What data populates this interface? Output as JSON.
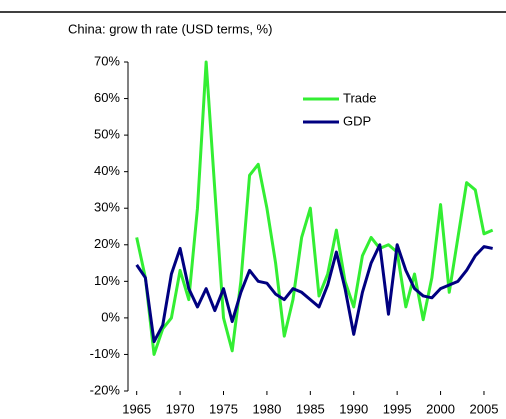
{
  "chart_data": {
    "type": "line",
    "title": "China: grow th rate (USD terms, %)",
    "x": [
      1965,
      1966,
      1967,
      1968,
      1969,
      1970,
      1971,
      1972,
      1973,
      1974,
      1975,
      1976,
      1977,
      1978,
      1979,
      1980,
      1981,
      1982,
      1983,
      1984,
      1985,
      1986,
      1987,
      1988,
      1989,
      1990,
      1991,
      1992,
      1993,
      1994,
      1995,
      1996,
      1997,
      1998,
      1999,
      2000,
      2001,
      2002,
      2003,
      2004,
      2005,
      2006
    ],
    "series": [
      {
        "name": "Trade",
        "color": "#33ee33",
        "values": [
          22,
          11,
          -10,
          -3,
          0,
          13,
          5,
          30,
          70,
          35,
          0,
          -9,
          10,
          39,
          42,
          30,
          15,
          -5,
          5,
          22,
          30,
          6,
          12,
          24,
          10,
          3,
          17,
          22,
          19,
          20,
          18,
          3,
          12,
          -0.5,
          11,
          31,
          7,
          22,
          37,
          35,
          23,
          24
        ]
      },
      {
        "name": "GDP",
        "color": "#000080",
        "values": [
          14.5,
          11,
          -6.5,
          -2,
          12,
          19,
          8,
          3,
          8,
          2,
          8,
          -1,
          7,
          13,
          10,
          9.5,
          6.5,
          5,
          8,
          7,
          5,
          3,
          9,
          18,
          8,
          -4.5,
          7,
          15,
          20,
          1,
          20,
          13,
          8,
          6,
          5.5,
          8,
          9,
          10,
          13,
          17,
          19.5,
          19
        ]
      }
    ],
    "xlim": [
      1964,
      2006.5
    ],
    "xticks": [
      1965,
      1970,
      1975,
      1980,
      1985,
      1990,
      1995,
      2000,
      2005
    ],
    "ylim": [
      -20,
      70
    ],
    "yticks": [
      {
        "value": -20,
        "label": "-20%"
      },
      {
        "value": -10,
        "label": "-10%"
      },
      {
        "value": 0,
        "label": "0%"
      },
      {
        "value": 10,
        "label": "10%"
      },
      {
        "value": 20,
        "label": "20%"
      },
      {
        "value": 30,
        "label": "30%"
      },
      {
        "value": 40,
        "label": "40%"
      },
      {
        "value": 50,
        "label": "50%"
      },
      {
        "value": 60,
        "label": "60%"
      },
      {
        "value": 70,
        "label": "70%"
      }
    ],
    "legend": "upper-center",
    "grid": false
  }
}
